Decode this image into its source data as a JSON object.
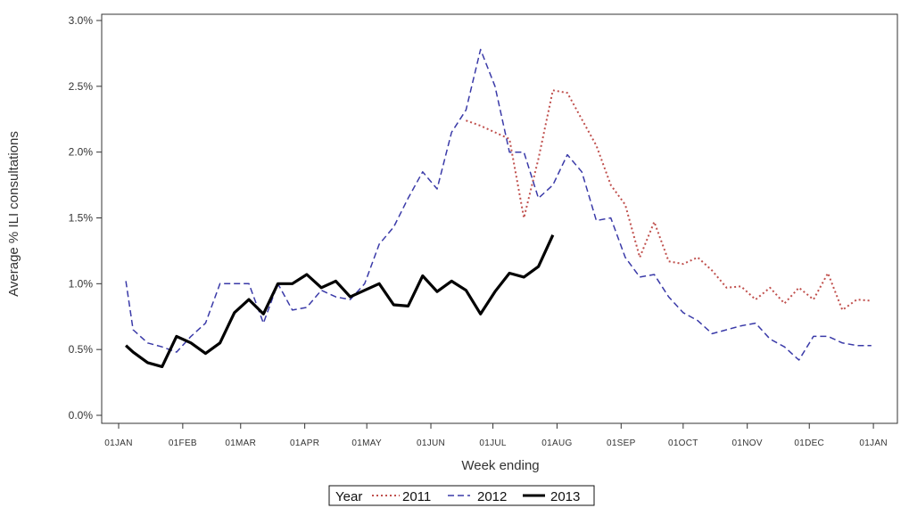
{
  "chart_data": {
    "type": "line",
    "title": "",
    "xlabel": "Week ending",
    "ylabel": "Average % ILI consultations",
    "yticks": [
      "0.0%",
      "0.5%",
      "1.0%",
      "1.5%",
      "2.0%",
      "2.5%",
      "3.0%"
    ],
    "ylim": [
      0,
      3
    ],
    "xticks": [
      "01JAN",
      "01FEB",
      "01MAR",
      "01APR",
      "01MAY",
      "01JUN",
      "01JUL",
      "01AUG",
      "01SEP",
      "01OCT",
      "01NOV",
      "01DEC",
      "01JAN"
    ],
    "xlim_week": [
      0,
      53
    ],
    "grid": false,
    "legend": {
      "title": "Year",
      "position": "bottom-center"
    },
    "series": [
      {
        "name": "2011",
        "color": "#c0504d",
        "style": "dotted",
        "x": [
          24.0,
          25.0,
          26.0,
          27.0,
          28.0,
          29.0,
          30.0,
          31.0,
          32.0,
          33.0,
          34.0,
          35.0,
          36.0,
          37.0,
          38.0,
          39.0,
          40.0,
          41.0,
          42.0,
          43.0,
          44.0,
          45.0,
          46.0,
          47.0,
          48.0,
          49.0,
          50.0,
          51.0,
          52.0
        ],
        "values": [
          2.24,
          2.2,
          2.15,
          2.1,
          1.5,
          1.95,
          2.47,
          2.45,
          2.25,
          2.05,
          1.75,
          1.6,
          1.2,
          1.47,
          1.17,
          1.15,
          1.2,
          1.1,
          0.97,
          0.98,
          0.88,
          0.97,
          0.85,
          0.97,
          0.88,
          1.08,
          0.8,
          0.88,
          0.87
        ]
      },
      {
        "name": "2012",
        "color": "#3a3aa8",
        "style": "dashed",
        "x": [
          0.5,
          1.0,
          2.0,
          3.0,
          4.0,
          5.0,
          6.0,
          7.0,
          8.0,
          9.0,
          10.0,
          11.0,
          12.0,
          13.0,
          14.0,
          15.0,
          16.0,
          17.0,
          18.0,
          19.0,
          20.0,
          21.0,
          22.0,
          23.0,
          24.0,
          25.0,
          26.0,
          27.0,
          28.0,
          29.0,
          30.0,
          31.0,
          32.0,
          33.0,
          34.0,
          35.0,
          36.0,
          37.0,
          38.0,
          39.0,
          40.0,
          41.0,
          42.0,
          43.0,
          44.0,
          45.0,
          46.0,
          47.0,
          48.0,
          49.0,
          50.0,
          51.0,
          52.0
        ],
        "values": [
          1.02,
          0.65,
          0.55,
          0.52,
          0.48,
          0.6,
          0.7,
          1.0,
          1.0,
          1.0,
          0.7,
          1.0,
          0.8,
          0.82,
          0.95,
          0.9,
          0.88,
          1.0,
          1.3,
          1.43,
          1.65,
          1.85,
          1.72,
          2.15,
          2.32,
          2.78,
          2.5,
          2.0,
          2.0,
          1.65,
          1.75,
          1.98,
          1.85,
          1.48,
          1.5,
          1.2,
          1.05,
          1.07,
          0.9,
          0.78,
          0.72,
          0.62,
          0.65,
          0.68,
          0.7,
          0.58,
          0.52,
          0.42,
          0.6,
          0.6,
          0.55,
          0.53,
          0.53
        ]
      },
      {
        "name": "2013",
        "color": "#000000",
        "style": "solid",
        "x": [
          0.5,
          1.0,
          2.0,
          3.0,
          4.0,
          5.0,
          6.0,
          7.0,
          8.0,
          9.0,
          10.0,
          11.0,
          12.0,
          13.0,
          14.0,
          15.0,
          16.0,
          17.0,
          18.0,
          19.0,
          20.0,
          21.0,
          22.0,
          23.0,
          24.0,
          25.0,
          26.0,
          27.0,
          28.0,
          29.0,
          30.0
        ],
        "values": [
          0.53,
          0.48,
          0.4,
          0.37,
          0.6,
          0.55,
          0.47,
          0.55,
          0.78,
          0.88,
          0.77,
          1.0,
          1.0,
          1.07,
          0.97,
          1.02,
          0.9,
          0.95,
          1.0,
          0.84,
          0.83,
          1.06,
          0.94,
          1.02,
          0.95,
          0.77,
          0.94,
          1.08,
          1.05,
          1.13,
          1.37
        ]
      }
    ]
  }
}
